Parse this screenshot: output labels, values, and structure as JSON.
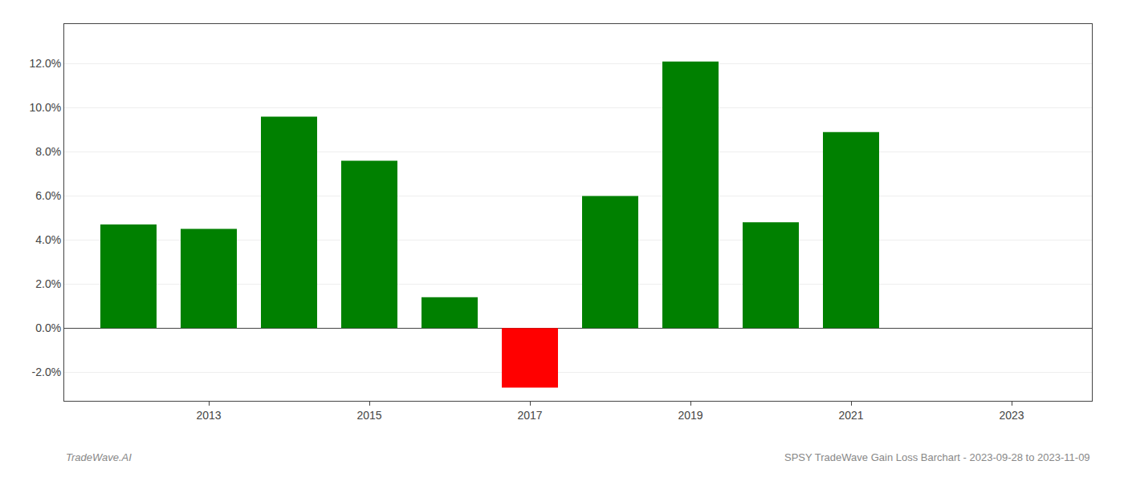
{
  "chart_data": {
    "type": "bar",
    "x": [
      2012,
      2013,
      2014,
      2015,
      2016,
      2017,
      2018,
      2019,
      2020,
      2021
    ],
    "values": [
      0.047,
      0.045,
      0.096,
      0.076,
      0.014,
      -0.027,
      0.06,
      0.121,
      0.048,
      0.089
    ],
    "colors": [
      "#008000",
      "#008000",
      "#008000",
      "#008000",
      "#008000",
      "#ff0000",
      "#008000",
      "#008000",
      "#008000",
      "#008000"
    ],
    "xlim": [
      2011.2,
      2024.0
    ],
    "xticks": [
      2013,
      2015,
      2017,
      2019,
      2021,
      2023
    ],
    "ylim": [
      -0.033,
      0.138
    ],
    "yticks": [
      {
        "value": -0.02,
        "label": "-2.0%"
      },
      {
        "value": 0.0,
        "label": "0.0%"
      },
      {
        "value": 0.02,
        "label": "2.0%"
      },
      {
        "value": 0.04,
        "label": "4.0%"
      },
      {
        "value": 0.06,
        "label": "6.0%"
      },
      {
        "value": 0.08,
        "label": "8.0%"
      },
      {
        "value": 0.1,
        "label": "10.0%"
      },
      {
        "value": 0.12,
        "label": "12.0%"
      }
    ],
    "grid": true,
    "annotations": [
      "TradeWave.AI",
      "SPSY TradeWave Gain Loss Barchart - 2023-09-28 to 2023-11-09"
    ]
  }
}
